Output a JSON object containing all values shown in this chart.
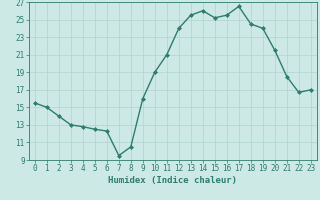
{
  "x": [
    0,
    1,
    2,
    3,
    4,
    5,
    6,
    7,
    8,
    9,
    10,
    11,
    12,
    13,
    14,
    15,
    16,
    17,
    18,
    19,
    20,
    21,
    22,
    23
  ],
  "y": [
    15.5,
    15.0,
    14.0,
    13.0,
    12.8,
    12.5,
    12.3,
    9.5,
    10.5,
    16.0,
    19.0,
    21.0,
    24.0,
    25.5,
    26.0,
    25.2,
    25.5,
    26.5,
    24.5,
    24.0,
    21.5,
    18.5,
    16.7,
    17.0
  ],
  "line_color": "#2e7d6e",
  "marker": "D",
  "marker_size": 2.0,
  "bg_color": "#cce9e5",
  "grid_color": "#afd4cf",
  "xlabel": "Humidex (Indice chaleur)",
  "xlim": [
    -0.5,
    23.5
  ],
  "ylim": [
    9,
    27
  ],
  "xticks": [
    0,
    1,
    2,
    3,
    4,
    5,
    6,
    7,
    8,
    9,
    10,
    11,
    12,
    13,
    14,
    15,
    16,
    17,
    18,
    19,
    20,
    21,
    22,
    23
  ],
  "yticks": [
    9,
    11,
    13,
    15,
    17,
    19,
    21,
    23,
    25,
    27
  ],
  "tick_color": "#2e7d6e",
  "label_fontsize": 5.5,
  "axis_label_fontsize": 6.5,
  "line_width": 1.0,
  "marker_color": "#2e7d6e"
}
